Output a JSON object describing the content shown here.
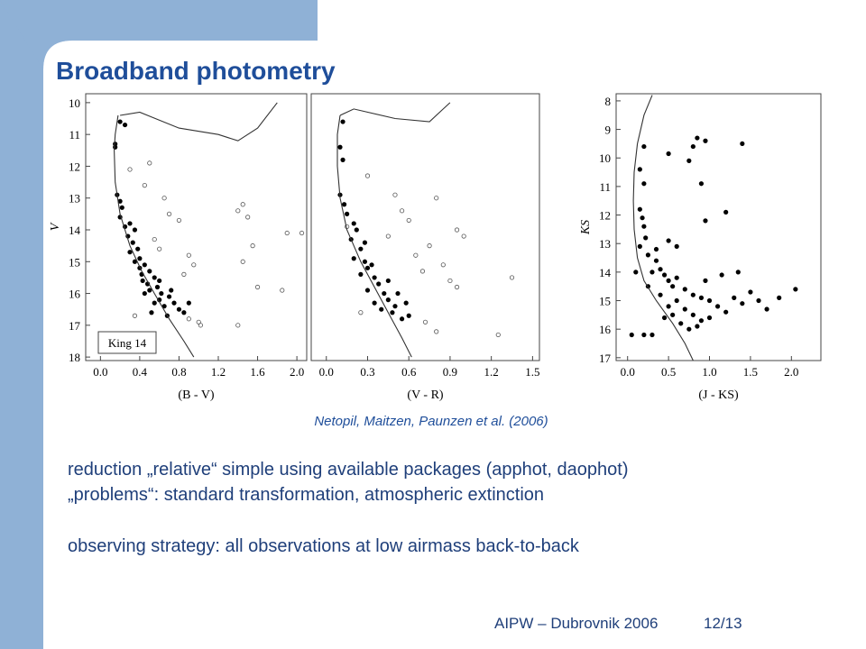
{
  "title": "Broadband photometry",
  "chart_data": [
    {
      "type": "scatter",
      "x_label": "(B - V)",
      "y_label": "V",
      "annotation": "King 14",
      "y_reversed": true,
      "xlim": [
        -0.15,
        2.1
      ],
      "ylim": [
        9.72,
        18.11
      ],
      "xticks": [
        {
          "value": 0,
          "label": "0.0"
        },
        0.4,
        0.8,
        1.2,
        1.6,
        {
          "value": 2,
          "label": "2.0"
        }
      ],
      "yticks": [
        10,
        11,
        12,
        13,
        14,
        15,
        16,
        17,
        18
      ],
      "series": [
        {
          "marker": "filled",
          "color": "#000000",
          "x": [
            0.2,
            0.25,
            0.15,
            0.15,
            0.17,
            0.2,
            0.22,
            0.2,
            0.3,
            0.35,
            0.28,
            0.33,
            0.38,
            0.4,
            0.35,
            0.45,
            0.5,
            0.42,
            0.55,
            0.6,
            0.48,
            0.5,
            0.62,
            0.7,
            0.45,
            0.55,
            0.75,
            0.65,
            0.8,
            0.68,
            0.85,
            0.6,
            0.72,
            0.4,
            0.52,
            0.9,
            0.58,
            0.3,
            0.25,
            0.43
          ],
          "values": [
            10.6,
            10.7,
            11.3,
            11.4,
            12.9,
            13.1,
            13.3,
            13.6,
            13.8,
            14.0,
            14.2,
            14.4,
            14.6,
            14.9,
            15.0,
            15.1,
            15.3,
            15.4,
            15.5,
            15.6,
            15.7,
            15.9,
            16.0,
            16.1,
            16.0,
            16.3,
            16.3,
            16.4,
            16.5,
            16.7,
            16.6,
            16.2,
            15.9,
            15.2,
            16.6,
            16.3,
            15.8,
            14.7,
            13.9,
            15.6
          ]
        },
        {
          "marker": "open",
          "color": "#555555",
          "x": [
            0.3,
            0.5,
            0.45,
            0.7,
            0.8,
            0.55,
            0.6,
            0.9,
            0.95,
            0.85,
            0.35,
            0.9,
            1.0,
            1.02,
            1.45,
            1.5,
            1.4,
            1.45,
            1.55,
            1.6,
            1.9,
            2.05,
            1.4,
            1.85,
            0.65
          ],
          "values": [
            12.1,
            11.9,
            12.6,
            13.5,
            13.7,
            14.3,
            14.6,
            14.8,
            15.1,
            15.4,
            16.7,
            16.8,
            16.9,
            17.0,
            13.2,
            13.6,
            13.4,
            15.0,
            14.5,
            15.8,
            14.1,
            14.1,
            17.0,
            15.9,
            13.0
          ]
        },
        {
          "marker": "line",
          "color": "#333333",
          "x": [
            0.18,
            0.15,
            0.14,
            0.15,
            0.2,
            0.3,
            0.42,
            0.55,
            0.7,
            0.85,
            0.95,
            null,
            0.2,
            0.4,
            0.8,
            1.2,
            1.4,
            1.6,
            1.75,
            1.8
          ],
          "values": [
            10.4,
            11.0,
            11.5,
            12.5,
            13.5,
            14.5,
            15.3,
            16.0,
            16.8,
            17.5,
            18,
            null,
            10.4,
            10.3,
            10.8,
            11.0,
            11.2,
            10.8,
            10.2,
            10.0
          ]
        }
      ]
    },
    {
      "type": "scatter",
      "x_label": "(V - R)",
      "y_reversed": true,
      "xlim": [
        -0.11,
        1.55
      ],
      "ylim": [
        9.72,
        18.11
      ],
      "xticks": [
        {
          "value": 0,
          "label": "0.0"
        },
        0.3,
        0.6,
        0.9,
        1.2,
        1.5
      ],
      "series": [
        {
          "marker": "filled",
          "color": "#000000",
          "x": [
            0.12,
            0.1,
            0.12,
            0.1,
            0.13,
            0.15,
            0.2,
            0.22,
            0.18,
            0.25,
            0.2,
            0.28,
            0.3,
            0.25,
            0.35,
            0.38,
            0.3,
            0.42,
            0.45,
            0.35,
            0.5,
            0.48,
            0.55,
            0.4,
            0.52,
            0.45,
            0.33,
            0.28,
            0.6,
            0.58
          ],
          "values": [
            10.6,
            11.4,
            11.8,
            12.9,
            13.2,
            13.5,
            13.8,
            14.0,
            14.3,
            14.6,
            14.9,
            15.0,
            15.2,
            15.4,
            15.5,
            15.7,
            15.9,
            16.0,
            16.2,
            16.3,
            16.4,
            16.6,
            16.8,
            16.5,
            16.0,
            15.6,
            15.1,
            14.4,
            16.7,
            16.3
          ]
        },
        {
          "marker": "open",
          "color": "#555555",
          "x": [
            0.3,
            0.5,
            0.55,
            0.6,
            0.45,
            0.75,
            0.65,
            0.7,
            0.85,
            0.8,
            0.95,
            1.0,
            0.9,
            0.95,
            1.35,
            0.8,
            1.25,
            0.15,
            0.25,
            0.72
          ],
          "values": [
            12.3,
            12.9,
            13.4,
            13.7,
            14.2,
            14.5,
            14.8,
            15.3,
            15.1,
            13.0,
            14.0,
            14.2,
            15.6,
            15.8,
            15.5,
            17.2,
            17.3,
            13.9,
            16.6,
            16.9
          ]
        },
        {
          "marker": "line",
          "color": "#333333",
          "x": [
            0.1,
            0.08,
            0.08,
            0.1,
            0.15,
            0.25,
            0.35,
            0.45,
            0.55,
            0.62,
            null,
            0.1,
            0.2,
            0.5,
            0.75,
            0.85,
            0.9
          ],
          "values": [
            10.4,
            11.0,
            12.0,
            13.0,
            14.0,
            15.0,
            15.8,
            16.6,
            17.4,
            18,
            null,
            10.4,
            10.2,
            10.5,
            10.6,
            10.2,
            10.0
          ]
        }
      ]
    },
    {
      "type": "scatter",
      "x_label": "(J - KS)",
      "y_label": "KS",
      "y_reversed": true,
      "xlim": [
        -0.14,
        2.36
      ],
      "ylim": [
        7.75,
        17.1
      ],
      "xticks": [
        {
          "value": 0,
          "label": "0.0"
        },
        0.5,
        {
          "value": 1,
          "label": "1.0"
        },
        1.5,
        {
          "value": 2,
          "label": "2.0"
        }
      ],
      "yticks": [
        8,
        9,
        10,
        11,
        12,
        13,
        14,
        15,
        16,
        17
      ],
      "series": [
        {
          "marker": "filled",
          "color": "#000000",
          "x": [
            0.2,
            0.15,
            0.2,
            0.15,
            0.18,
            0.2,
            0.22,
            0.15,
            0.25,
            0.35,
            0.4,
            0.45,
            0.3,
            0.5,
            0.55,
            0.6,
            0.7,
            0.8,
            0.9,
            1.0,
            0.6,
            0.5,
            0.7,
            0.8,
            0.9,
            1.1,
            1.2,
            1.3,
            0.4,
            0.55,
            0.65,
            0.75,
            0.85,
            1.4,
            1.5,
            1.6,
            1.7,
            2.05,
            1.85,
            0.95,
            1.15,
            1.35,
            0.3,
            0.2,
            0.05,
            0.45,
            1.0,
            0.35,
            0.6,
            0.5,
            1.2,
            0.95,
            0.9,
            0.8,
            0.85,
            0.95,
            1.4,
            0.5,
            0.75,
            0.25,
            0.1
          ],
          "values": [
            9.6,
            10.4,
            10.9,
            11.8,
            12.1,
            12.4,
            12.8,
            13.1,
            13.4,
            13.6,
            13.9,
            14.1,
            14.0,
            14.3,
            14.5,
            14.2,
            14.6,
            14.8,
            14.9,
            15.0,
            15.0,
            15.2,
            15.3,
            15.5,
            15.7,
            15.2,
            15.4,
            14.9,
            14.8,
            15.5,
            15.8,
            16.0,
            15.9,
            15.1,
            14.7,
            15.0,
            15.3,
            14.6,
            14.9,
            14.3,
            14.1,
            14.0,
            16.2,
            16.2,
            16.2,
            15.6,
            15.6,
            13.2,
            13.1,
            12.9,
            11.9,
            12.2,
            10.9,
            9.6,
            9.3,
            9.4,
            9.5,
            9.85,
            10.1,
            14.5,
            14.0
          ]
        },
        {
          "marker": "line",
          "color": "#333333",
          "x": [
            0.3,
            0.2,
            0.12,
            0.08,
            0.07,
            0.08,
            0.12,
            0.2,
            0.35,
            0.55,
            0.7,
            0.8
          ],
          "values": [
            7.8,
            8.5,
            9.5,
            10.5,
            11.5,
            12.5,
            13.5,
            14.3,
            15.0,
            15.8,
            16.5,
            17.1
          ]
        }
      ]
    }
  ],
  "caption": "Netopil, Maitzen, Paunzen et al. (2006)",
  "body": [
    "reduction „relative“ simple using available packages (apphot, daophot)",
    "„problems“: standard transformation, atmospheric extinction",
    "observing strategy: all observations at low airmass back-to-back"
  ],
  "footer": {
    "left": "AIPW – Dubrovnik 2006",
    "right": "12/13"
  }
}
